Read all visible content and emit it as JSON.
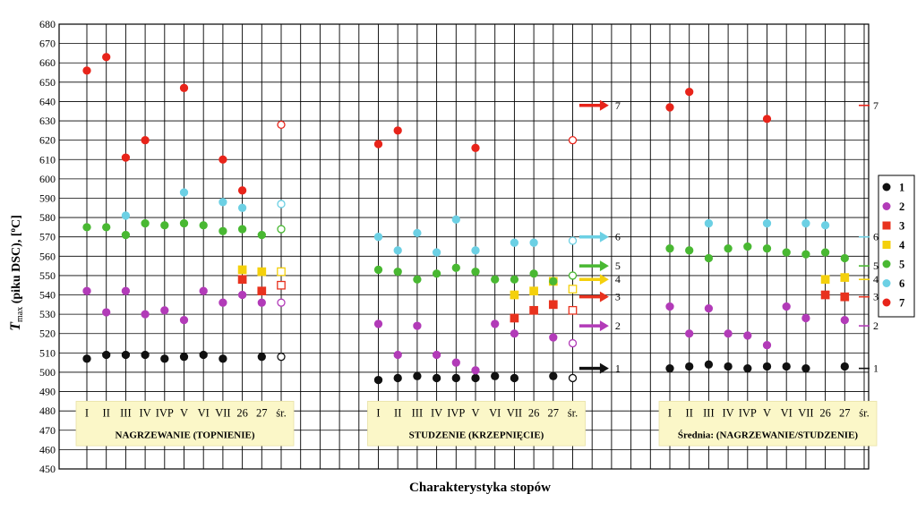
{
  "chart_data": {
    "type": "scatter",
    "ylabel": "T max (piku DSC), [oC]",
    "ylabel_parts": {
      "main": "T",
      "sub": "max",
      "rest": " (piku DSC), [",
      "deg": "o",
      "end": "C]"
    },
    "xlabel": "Charakterystyka stopów",
    "ylim": [
      450,
      680
    ],
    "y_ticks": [
      450,
      460,
      470,
      480,
      490,
      500,
      510,
      520,
      530,
      540,
      550,
      560,
      570,
      580,
      590,
      600,
      610,
      620,
      630,
      640,
      650,
      660,
      670,
      680
    ],
    "grid": true,
    "legend_position": "right",
    "colors": {
      "1": "#111111",
      "2": "#b23bb8",
      "3": "#e8321e",
      "4": "#f4d00c",
      "5": "#49b832",
      "6": "#6cd0e4",
      "7": "#e8241a"
    },
    "markers": {
      "1": "circle",
      "2": "circle",
      "3": "square",
      "4": "square",
      "5": "circle",
      "6": "circle",
      "7": "circle"
    },
    "legend": [
      {
        "key": "1",
        "label": "1"
      },
      {
        "key": "2",
        "label": "2"
      },
      {
        "key": "3",
        "label": "3"
      },
      {
        "key": "4",
        "label": "4"
      },
      {
        "key": "5",
        "label": "5"
      },
      {
        "key": "6",
        "label": "6"
      },
      {
        "key": "7",
        "label": "7"
      }
    ],
    "groups": [
      {
        "title": "NAGRZEWANIE (TOPNIENIE)",
        "categories": [
          "I",
          "II",
          "III",
          "IV",
          "IVP",
          "V",
          "VI",
          "VII",
          "26",
          "27",
          "śr."
        ],
        "series": {
          "1": [
            507,
            509,
            509,
            509,
            507,
            508,
            509,
            507,
            null,
            508,
            508
          ],
          "2": [
            542,
            531,
            542,
            530,
            532,
            527,
            542,
            536,
            540,
            536,
            536
          ],
          "3": [
            null,
            null,
            null,
            null,
            null,
            null,
            null,
            null,
            548,
            542,
            545
          ],
          "4": [
            null,
            null,
            null,
            null,
            null,
            null,
            null,
            null,
            553,
            552,
            552
          ],
          "5": [
            575,
            575,
            571,
            577,
            576,
            577,
            576,
            573,
            574,
            571,
            574
          ],
          "6": [
            null,
            null,
            581,
            null,
            null,
            593,
            null,
            588,
            585,
            null,
            587
          ],
          "7": [
            656,
            663,
            611,
            620,
            null,
            647,
            null,
            610,
            594,
            null,
            628
          ]
        },
        "open_category": "śr."
      },
      {
        "title": "STUDZENIE (KRZEPNIĘCIE)",
        "categories": [
          "I",
          "II",
          "III",
          "IV",
          "IVP",
          "V",
          "VI",
          "VII",
          "26",
          "27",
          "śr."
        ],
        "series": {
          "1": [
            496,
            497,
            498,
            497,
            497,
            497,
            498,
            497,
            null,
            498,
            497
          ],
          "2": [
            525,
            509,
            524,
            509,
            505,
            501,
            525,
            520,
            null,
            518,
            515
          ],
          "3": [
            null,
            null,
            null,
            null,
            null,
            null,
            null,
            528,
            532,
            535,
            532
          ],
          "4": [
            null,
            null,
            null,
            null,
            null,
            null,
            null,
            540,
            542,
            547,
            543
          ],
          "5": [
            553,
            552,
            548,
            551,
            554,
            552,
            548,
            548,
            551,
            547,
            550
          ],
          "6": [
            570,
            563,
            572,
            562,
            579,
            563,
            null,
            567,
            567,
            null,
            568
          ],
          "7": [
            618,
            625,
            null,
            null,
            null,
            616,
            null,
            null,
            null,
            null,
            620
          ]
        },
        "open_category": "śr."
      },
      {
        "title": "Średnia: (NAGRZEWANIE/STUDZENIE)",
        "categories": [
          "I",
          "II",
          "III",
          "IV",
          "IVP",
          "V",
          "VI",
          "VII",
          "26",
          "27",
          "śr."
        ],
        "series": {
          "1": [
            502,
            503,
            504,
            503,
            502,
            503,
            503,
            502,
            null,
            503,
            null
          ],
          "2": [
            534,
            520,
            533,
            520,
            519,
            514,
            534,
            528,
            null,
            527,
            null
          ],
          "3": [
            null,
            null,
            null,
            null,
            null,
            null,
            null,
            null,
            540,
            539,
            null
          ],
          "4": [
            null,
            null,
            null,
            null,
            null,
            null,
            null,
            null,
            548,
            549,
            null
          ],
          "5": [
            564,
            563,
            559,
            564,
            565,
            564,
            562,
            561,
            562,
            559,
            null
          ],
          "6": [
            null,
            null,
            577,
            null,
            null,
            577,
            null,
            577,
            576,
            null,
            null
          ],
          "7": [
            637,
            645,
            null,
            null,
            null,
            631,
            null,
            null,
            null,
            null,
            null
          ]
        }
      }
    ],
    "arrow_annotations": {
      "values": {
        "1": 502,
        "2": 524,
        "3": 539,
        "4": 548,
        "5": 555,
        "6": 570,
        "7": 638
      },
      "labels": [
        "1",
        "2",
        "3",
        "4",
        "5",
        "6",
        "7"
      ]
    },
    "dash_annotations": {
      "values": {
        "1": 502,
        "2": 524,
        "3": 539,
        "4": 548,
        "5": 555,
        "6": 570,
        "7": 638
      },
      "labels": [
        "1",
        "2",
        "3",
        "4",
        "5",
        "6",
        "7"
      ]
    }
  }
}
